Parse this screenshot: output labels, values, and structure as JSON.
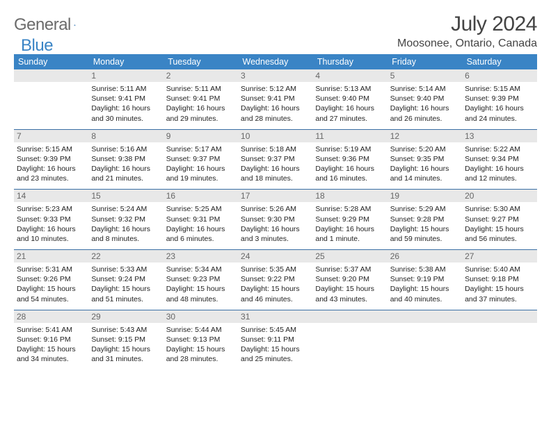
{
  "brand": {
    "word1": "General",
    "word2": "Blue"
  },
  "title": "July 2024",
  "location": "Moosonee, Ontario, Canada",
  "colors": {
    "header_bg": "#3a84c5",
    "header_text": "#ffffff",
    "row_divider": "#3a6fa5",
    "daynum_bg": "#e8e8e8",
    "daynum_text": "#666666",
    "body_text": "#222222",
    "logo_gray": "#6b6b6b",
    "logo_blue": "#3a84c5"
  },
  "weekdays": [
    "Sunday",
    "Monday",
    "Tuesday",
    "Wednesday",
    "Thursday",
    "Friday",
    "Saturday"
  ],
  "weeks": [
    [
      {
        "n": "",
        "lines": []
      },
      {
        "n": "1",
        "lines": [
          "Sunrise: 5:11 AM",
          "Sunset: 9:41 PM",
          "Daylight: 16 hours",
          "and 30 minutes."
        ]
      },
      {
        "n": "2",
        "lines": [
          "Sunrise: 5:11 AM",
          "Sunset: 9:41 PM",
          "Daylight: 16 hours",
          "and 29 minutes."
        ]
      },
      {
        "n": "3",
        "lines": [
          "Sunrise: 5:12 AM",
          "Sunset: 9:41 PM",
          "Daylight: 16 hours",
          "and 28 minutes."
        ]
      },
      {
        "n": "4",
        "lines": [
          "Sunrise: 5:13 AM",
          "Sunset: 9:40 PM",
          "Daylight: 16 hours",
          "and 27 minutes."
        ]
      },
      {
        "n": "5",
        "lines": [
          "Sunrise: 5:14 AM",
          "Sunset: 9:40 PM",
          "Daylight: 16 hours",
          "and 26 minutes."
        ]
      },
      {
        "n": "6",
        "lines": [
          "Sunrise: 5:15 AM",
          "Sunset: 9:39 PM",
          "Daylight: 16 hours",
          "and 24 minutes."
        ]
      }
    ],
    [
      {
        "n": "7",
        "lines": [
          "Sunrise: 5:15 AM",
          "Sunset: 9:39 PM",
          "Daylight: 16 hours",
          "and 23 minutes."
        ]
      },
      {
        "n": "8",
        "lines": [
          "Sunrise: 5:16 AM",
          "Sunset: 9:38 PM",
          "Daylight: 16 hours",
          "and 21 minutes."
        ]
      },
      {
        "n": "9",
        "lines": [
          "Sunrise: 5:17 AM",
          "Sunset: 9:37 PM",
          "Daylight: 16 hours",
          "and 19 minutes."
        ]
      },
      {
        "n": "10",
        "lines": [
          "Sunrise: 5:18 AM",
          "Sunset: 9:37 PM",
          "Daylight: 16 hours",
          "and 18 minutes."
        ]
      },
      {
        "n": "11",
        "lines": [
          "Sunrise: 5:19 AM",
          "Sunset: 9:36 PM",
          "Daylight: 16 hours",
          "and 16 minutes."
        ]
      },
      {
        "n": "12",
        "lines": [
          "Sunrise: 5:20 AM",
          "Sunset: 9:35 PM",
          "Daylight: 16 hours",
          "and 14 minutes."
        ]
      },
      {
        "n": "13",
        "lines": [
          "Sunrise: 5:22 AM",
          "Sunset: 9:34 PM",
          "Daylight: 16 hours",
          "and 12 minutes."
        ]
      }
    ],
    [
      {
        "n": "14",
        "lines": [
          "Sunrise: 5:23 AM",
          "Sunset: 9:33 PM",
          "Daylight: 16 hours",
          "and 10 minutes."
        ]
      },
      {
        "n": "15",
        "lines": [
          "Sunrise: 5:24 AM",
          "Sunset: 9:32 PM",
          "Daylight: 16 hours",
          "and 8 minutes."
        ]
      },
      {
        "n": "16",
        "lines": [
          "Sunrise: 5:25 AM",
          "Sunset: 9:31 PM",
          "Daylight: 16 hours",
          "and 6 minutes."
        ]
      },
      {
        "n": "17",
        "lines": [
          "Sunrise: 5:26 AM",
          "Sunset: 9:30 PM",
          "Daylight: 16 hours",
          "and 3 minutes."
        ]
      },
      {
        "n": "18",
        "lines": [
          "Sunrise: 5:28 AM",
          "Sunset: 9:29 PM",
          "Daylight: 16 hours",
          "and 1 minute."
        ]
      },
      {
        "n": "19",
        "lines": [
          "Sunrise: 5:29 AM",
          "Sunset: 9:28 PM",
          "Daylight: 15 hours",
          "and 59 minutes."
        ]
      },
      {
        "n": "20",
        "lines": [
          "Sunrise: 5:30 AM",
          "Sunset: 9:27 PM",
          "Daylight: 15 hours",
          "and 56 minutes."
        ]
      }
    ],
    [
      {
        "n": "21",
        "lines": [
          "Sunrise: 5:31 AM",
          "Sunset: 9:26 PM",
          "Daylight: 15 hours",
          "and 54 minutes."
        ]
      },
      {
        "n": "22",
        "lines": [
          "Sunrise: 5:33 AM",
          "Sunset: 9:24 PM",
          "Daylight: 15 hours",
          "and 51 minutes."
        ]
      },
      {
        "n": "23",
        "lines": [
          "Sunrise: 5:34 AM",
          "Sunset: 9:23 PM",
          "Daylight: 15 hours",
          "and 48 minutes."
        ]
      },
      {
        "n": "24",
        "lines": [
          "Sunrise: 5:35 AM",
          "Sunset: 9:22 PM",
          "Daylight: 15 hours",
          "and 46 minutes."
        ]
      },
      {
        "n": "25",
        "lines": [
          "Sunrise: 5:37 AM",
          "Sunset: 9:20 PM",
          "Daylight: 15 hours",
          "and 43 minutes."
        ]
      },
      {
        "n": "26",
        "lines": [
          "Sunrise: 5:38 AM",
          "Sunset: 9:19 PM",
          "Daylight: 15 hours",
          "and 40 minutes."
        ]
      },
      {
        "n": "27",
        "lines": [
          "Sunrise: 5:40 AM",
          "Sunset: 9:18 PM",
          "Daylight: 15 hours",
          "and 37 minutes."
        ]
      }
    ],
    [
      {
        "n": "28",
        "lines": [
          "Sunrise: 5:41 AM",
          "Sunset: 9:16 PM",
          "Daylight: 15 hours",
          "and 34 minutes."
        ]
      },
      {
        "n": "29",
        "lines": [
          "Sunrise: 5:43 AM",
          "Sunset: 9:15 PM",
          "Daylight: 15 hours",
          "and 31 minutes."
        ]
      },
      {
        "n": "30",
        "lines": [
          "Sunrise: 5:44 AM",
          "Sunset: 9:13 PM",
          "Daylight: 15 hours",
          "and 28 minutes."
        ]
      },
      {
        "n": "31",
        "lines": [
          "Sunrise: 5:45 AM",
          "Sunset: 9:11 PM",
          "Daylight: 15 hours",
          "and 25 minutes."
        ]
      },
      {
        "n": "",
        "lines": []
      },
      {
        "n": "",
        "lines": []
      },
      {
        "n": "",
        "lines": []
      }
    ]
  ]
}
